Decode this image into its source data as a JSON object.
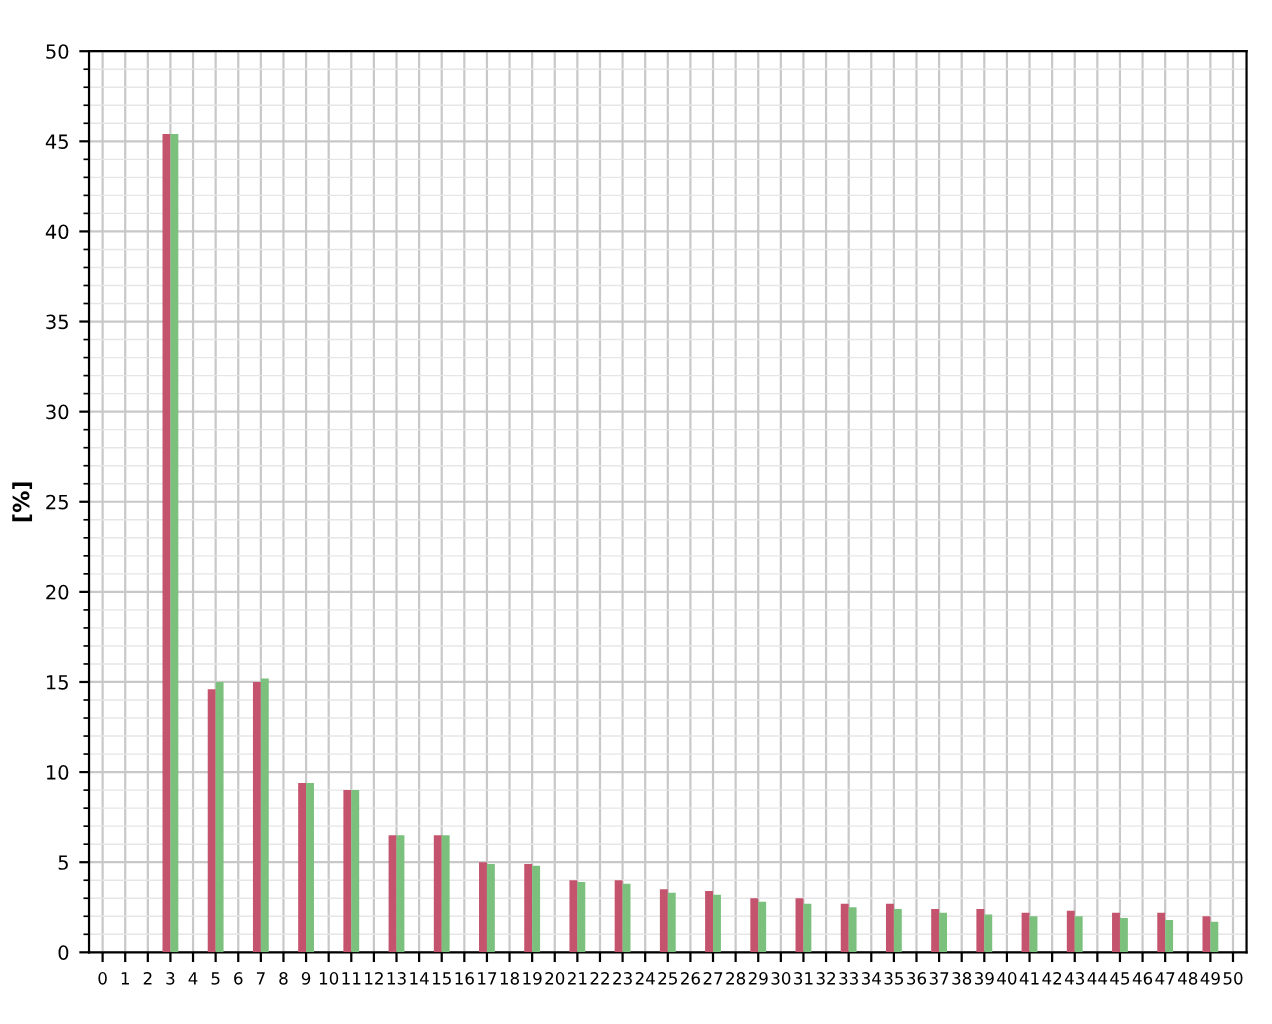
{
  "chart_data": {
    "type": "bar",
    "ylabel": "[%]",
    "categories": [
      "0",
      "1",
      "2",
      "3",
      "4",
      "5",
      "6",
      "7",
      "8",
      "9",
      "10",
      "11",
      "12",
      "13",
      "14",
      "15",
      "16",
      "17",
      "18",
      "19",
      "20",
      "21",
      "22",
      "23",
      "24",
      "25",
      "26",
      "27",
      "28",
      "29",
      "30",
      "31",
      "32",
      "33",
      "34",
      "35",
      "36",
      "37",
      "38",
      "39",
      "40",
      "41",
      "42",
      "43",
      "44",
      "45",
      "46",
      "47",
      "48",
      "49",
      "50"
    ],
    "series": [
      {
        "color": "#c4546e",
        "values": [
          0,
          0,
          0,
          45.4,
          0,
          14.6,
          0,
          15.0,
          0,
          9.4,
          0,
          9.0,
          0,
          6.5,
          0,
          6.5,
          0,
          5.0,
          0,
          4.9,
          0,
          4.0,
          0,
          4.0,
          0,
          3.5,
          0,
          3.4,
          0,
          3.0,
          0,
          3.0,
          0,
          2.7,
          0,
          2.7,
          0,
          2.4,
          0,
          2.4,
          0,
          2.2,
          0,
          2.3,
          0,
          2.2,
          0,
          2.2,
          0,
          2.0,
          0
        ]
      },
      {
        "color": "#7cc07e",
        "values": [
          0,
          0,
          0,
          45.4,
          0,
          15.0,
          0,
          15.2,
          0,
          9.4,
          0,
          9.0,
          0,
          6.5,
          0,
          6.5,
          0,
          4.9,
          0,
          4.8,
          0,
          3.9,
          0,
          3.8,
          0,
          3.3,
          0,
          3.2,
          0,
          2.8,
          0,
          2.7,
          0,
          2.5,
          0,
          2.4,
          0,
          2.2,
          0,
          2.1,
          0,
          2.0,
          0,
          2.0,
          0,
          1.9,
          0,
          1.8,
          0,
          1.7,
          0
        ]
      }
    ],
    "ylim": [
      0,
      50
    ],
    "yticks": [
      0,
      5,
      10,
      15,
      20,
      25,
      30,
      35,
      40,
      45,
      50
    ],
    "grid": true
  }
}
